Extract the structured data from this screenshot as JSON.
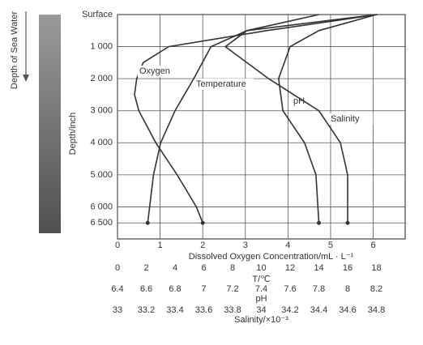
{
  "chart_data": {
    "type": "line",
    "side_label": "Depth of Sea Water",
    "y_label": "Depth/inch",
    "ylim": [
      0,
      7000
    ],
    "y_inverted": true,
    "yticks": [
      {
        "value": 0,
        "label": "Surface"
      },
      {
        "value": 1000,
        "label": "1 000"
      },
      {
        "value": 2000,
        "label": "2 000"
      },
      {
        "value": 3000,
        "label": "3 000"
      },
      {
        "value": 4000,
        "label": "4 000"
      },
      {
        "value": 5000,
        "label": "5 000"
      },
      {
        "value": 6000,
        "label": "6 000"
      },
      {
        "value": 6500,
        "label": "6 500"
      }
    ],
    "grid": true,
    "x_axes": [
      {
        "label": "Dissolved Oxygen Concentration/mL · L⁻¹",
        "lim": [
          0,
          6.75
        ],
        "ticks": [
          0,
          1,
          2,
          3,
          4,
          5,
          6
        ]
      },
      {
        "label": "T/℃",
        "lim": [
          0,
          20
        ],
        "ticks": [
          0,
          2,
          4,
          6,
          8,
          10,
          12,
          14,
          16,
          18
        ]
      },
      {
        "label": "pH",
        "lim": [
          6.4,
          8.4
        ],
        "ticks": [
          6.4,
          6.6,
          6.8,
          7.0,
          7.2,
          7.4,
          7.6,
          7.8,
          8.0,
          8.2
        ]
      },
      {
        "label": "Salinity/×10⁻³",
        "lim": [
          33.0,
          35.0
        ],
        "ticks": [
          33.0,
          33.2,
          33.4,
          33.6,
          33.8,
          34.0,
          34.2,
          34.4,
          34.6,
          34.8
        ]
      }
    ],
    "series": [
      {
        "name": "Oxygen",
        "color": "#333333",
        "axis": 0,
        "y": [
          0,
          500,
          1000,
          1500,
          2000,
          2500,
          3000,
          4000,
          5000,
          6000,
          6500
        ],
        "x": [
          6.1,
          3.5,
          1.2,
          0.6,
          0.45,
          0.4,
          0.5,
          0.9,
          1.4,
          1.85,
          2.0
        ]
      },
      {
        "name": "Temperature",
        "color": "#333333",
        "axis": 1,
        "y": [
          0,
          500,
          1000,
          2000,
          3000,
          4000,
          5000,
          6500
        ],
        "x": [
          18,
          9,
          6.5,
          5.3,
          4,
          3,
          2.5,
          2.1
        ]
      },
      {
        "name": "pH",
        "color": "#333333",
        "axis": 2,
        "y": [
          0,
          500,
          1000,
          2000,
          3000,
          4000,
          5000,
          6500
        ],
        "x": [
          8.2,
          7.8,
          7.6,
          7.52,
          7.55,
          7.7,
          7.78,
          7.8
        ]
      },
      {
        "name": "Salinity",
        "color": "#333333",
        "axis": 3,
        "y": [
          0,
          500,
          1000,
          2000,
          3000,
          4000,
          5000,
          6500
        ],
        "x": [
          34.4,
          33.9,
          33.75,
          34.05,
          34.4,
          34.55,
          34.6,
          34.6
        ]
      }
    ]
  }
}
